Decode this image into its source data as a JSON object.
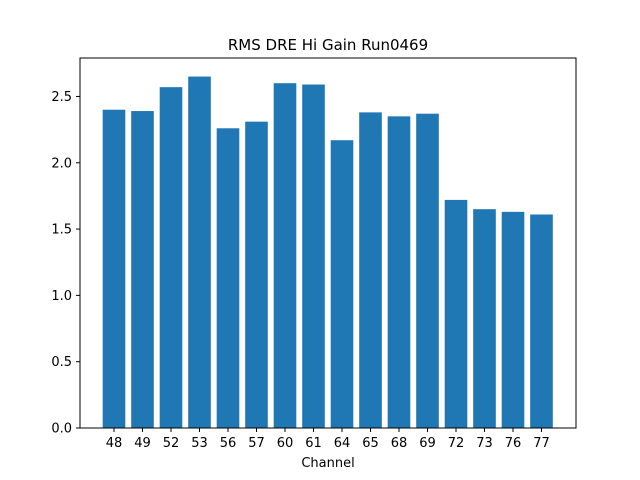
{
  "chart_data": {
    "type": "bar",
    "title": "RMS DRE Hi Gain Run0469",
    "xlabel": "Channel",
    "ylabel": "",
    "categories": [
      "48",
      "49",
      "52",
      "53",
      "56",
      "57",
      "60",
      "61",
      "64",
      "65",
      "68",
      "69",
      "72",
      "73",
      "76",
      "77"
    ],
    "values": [
      2.4,
      2.39,
      2.57,
      2.65,
      2.26,
      2.31,
      2.6,
      2.59,
      2.17,
      2.38,
      2.35,
      2.37,
      1.72,
      1.65,
      1.63,
      1.61
    ],
    "ylim": [
      0,
      2.79
    ],
    "yticks": [
      "0.0",
      "0.5",
      "1.0",
      "1.5",
      "2.0",
      "2.5"
    ],
    "grid": false,
    "bar_color": "#1f77b4"
  }
}
